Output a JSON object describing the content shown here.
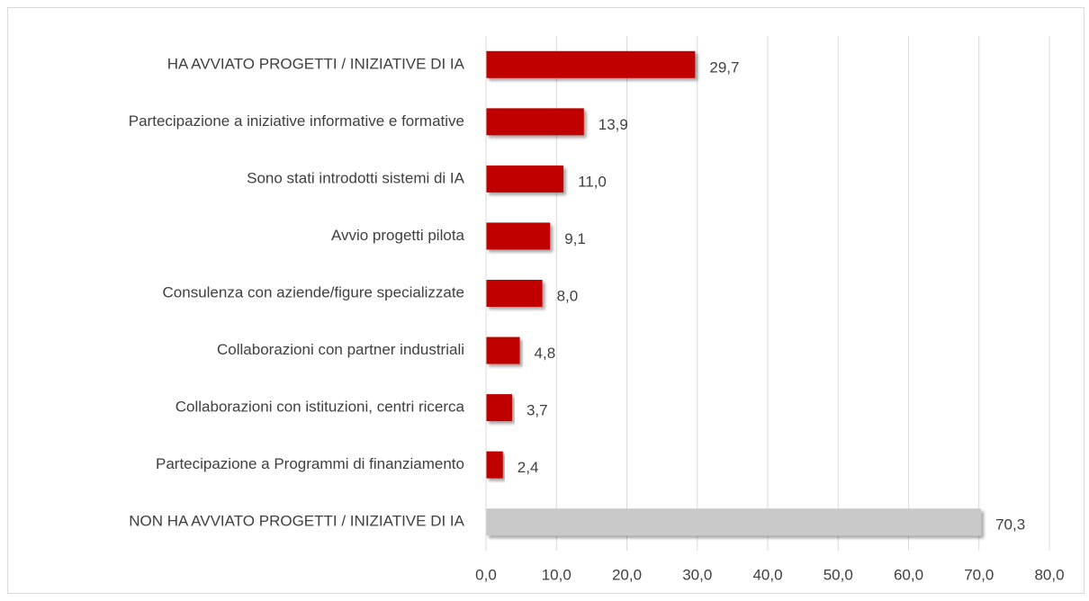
{
  "chart_data": {
    "type": "bar",
    "orientation": "horizontal",
    "categories": [
      "HA AVVIATO PROGETTI / INIZIATIVE DI IA",
      "Partecipazione a iniziative informative e formative",
      "Sono stati introdotti sistemi di IA",
      "Avvio progetti pilota",
      "Consulenza con aziende/figure specializzate",
      "Collaborazioni con partner industriali",
      "Collaborazioni con istituzioni, centri ricerca",
      "Partecipazione a Programmi di finanziamento",
      "NON HA AVVIATO PROGETTI / INIZIATIVE DI IA"
    ],
    "values": [
      29.7,
      13.9,
      11.0,
      9.1,
      8.0,
      4.8,
      3.7,
      2.4,
      70.3
    ],
    "value_labels": [
      "29,7",
      "13,9",
      "11,0",
      "9,1",
      "8,0",
      "4,8",
      "3,7",
      "2,4",
      "70,3"
    ],
    "colors": [
      "#c00000",
      "#c00000",
      "#c00000",
      "#c00000",
      "#c00000",
      "#c00000",
      "#c00000",
      "#c00000",
      "#c9c9c9"
    ],
    "xlim": [
      0,
      80
    ],
    "xticks": [
      {
        "value": 0,
        "label": "0,0"
      },
      {
        "value": 10,
        "label": "10,0"
      },
      {
        "value": 20,
        "label": "20,0"
      },
      {
        "value": 30,
        "label": "30,0"
      },
      {
        "value": 40,
        "label": "40,0"
      },
      {
        "value": 50,
        "label": "50,0"
      },
      {
        "value": 60,
        "label": "60,0"
      },
      {
        "value": 70,
        "label": "70,0"
      },
      {
        "value": 80,
        "label": "80,0"
      }
    ],
    "grid": true
  }
}
